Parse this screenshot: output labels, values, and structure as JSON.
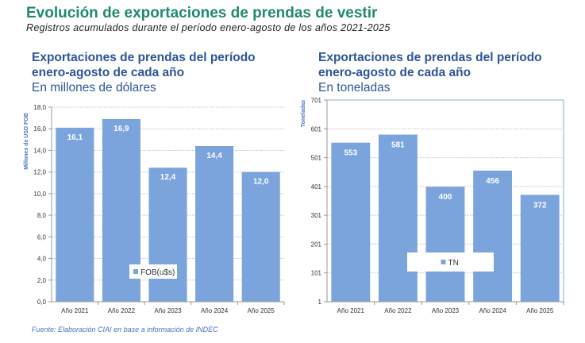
{
  "header": {
    "title": "Evolución de exportaciones de prendas de vestir",
    "subtitle": "Registros acumulados durante el período enero-agosto de los años 2021-2025"
  },
  "footer": {
    "source": "Fuente: Elaboración CIAI en base a información de INDEC"
  },
  "colors": {
    "title": "#1f8a6e",
    "chart_title": "#2f5597",
    "bar": "#7ba3dc",
    "axis_title": "#4472c4"
  },
  "chart_data": [
    {
      "type": "bar",
      "title_line1": "Exportaciones de prendas del período",
      "title_line2": "enero-agosto de cada año",
      "unit_label": "En millones de dólares",
      "xlabel": "",
      "ylabel": "Millones de USD FOB",
      "categories": [
        "Año 2021",
        "Año 2022",
        "Año 2023",
        "Año 2024",
        "Año 2025"
      ],
      "series": [
        {
          "name": "FOB(u$s)",
          "values": [
            16.1,
            16.9,
            12.4,
            14.4,
            12.0
          ]
        }
      ],
      "data_labels": [
        "16,1",
        "16,9",
        "12,4",
        "14,4",
        "12,0"
      ],
      "ylim": [
        0,
        18
      ],
      "yticks": [
        0,
        2,
        4,
        6,
        8,
        10,
        12,
        14,
        16,
        18
      ],
      "ytick_labels": [
        "0,0",
        "2,0",
        "4,0",
        "6,0",
        "8,0",
        "10,0",
        "12,0",
        "14,0",
        "16,0",
        "18,0"
      ],
      "grid": true,
      "legend": "bottom-center (inside plot)"
    },
    {
      "type": "bar",
      "title_line1": "Exportaciones de prendas del período",
      "title_line2": "enero-agosto de cada año",
      "unit_label": "En toneladas",
      "xlabel": "",
      "ylabel": "Toneladas",
      "categories": [
        "Año 2021",
        "Año 2022",
        "Año 2023",
        "Año 2024",
        "Año 2025"
      ],
      "series": [
        {
          "name": "TN",
          "values": [
            553,
            581,
            400,
            456,
            372
          ]
        }
      ],
      "data_labels": [
        "553",
        "581",
        "400",
        "456",
        "372"
      ],
      "ylim": [
        1,
        701
      ],
      "yticks": [
        1,
        101,
        201,
        301,
        401,
        501,
        601,
        701
      ],
      "ytick_labels": [
        "1",
        "101",
        "201",
        "301",
        "401",
        "501",
        "601",
        "701"
      ],
      "grid": true,
      "legend": "bottom-center (inside plot)"
    }
  ]
}
